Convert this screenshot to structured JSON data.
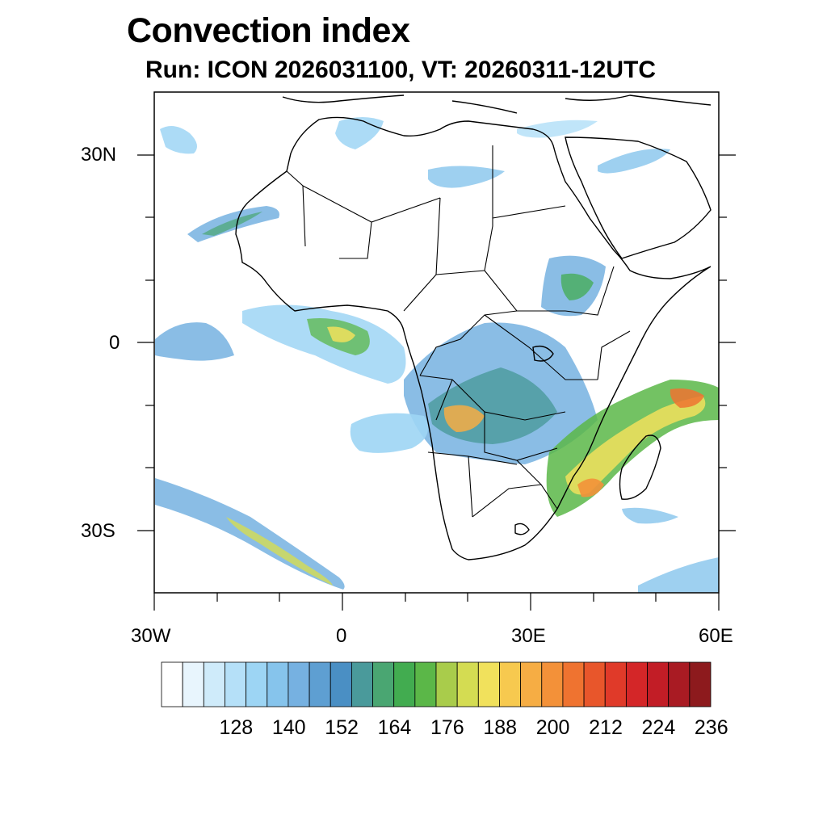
{
  "header": {
    "title": "Convection index",
    "subtitle": "Run: ICON 2026031100,  VT: 20260311-12UTC"
  },
  "map": {
    "region": "Africa",
    "lon_range": [
      -30,
      60
    ],
    "lat_range": [
      -40,
      40
    ],
    "lat_labels": [
      "30N",
      "0",
      "30S"
    ],
    "lon_labels": [
      "30W",
      "0",
      "30E",
      "60E"
    ]
  },
  "colorbar": {
    "labels": [
      "128",
      "140",
      "152",
      "164",
      "176",
      "188",
      "200",
      "212",
      "224",
      "236"
    ],
    "colors": [
      "#ffffff",
      "#e8f5fd",
      "#cfebfa",
      "#b5e0f8",
      "#9dd5f4",
      "#86c4ec",
      "#76b1e1",
      "#5e9fd2",
      "#4a8fc4",
      "#4a9a9b",
      "#4aa672",
      "#42ac50",
      "#5bb748",
      "#a9cc4b",
      "#d4dc52",
      "#f1e15c",
      "#f7c94f",
      "#f6ad44",
      "#f39139",
      "#ef7330",
      "#e8562b",
      "#e03a29",
      "#d42628",
      "#c21d26",
      "#a91b23",
      "#8d1a1d"
    ]
  }
}
